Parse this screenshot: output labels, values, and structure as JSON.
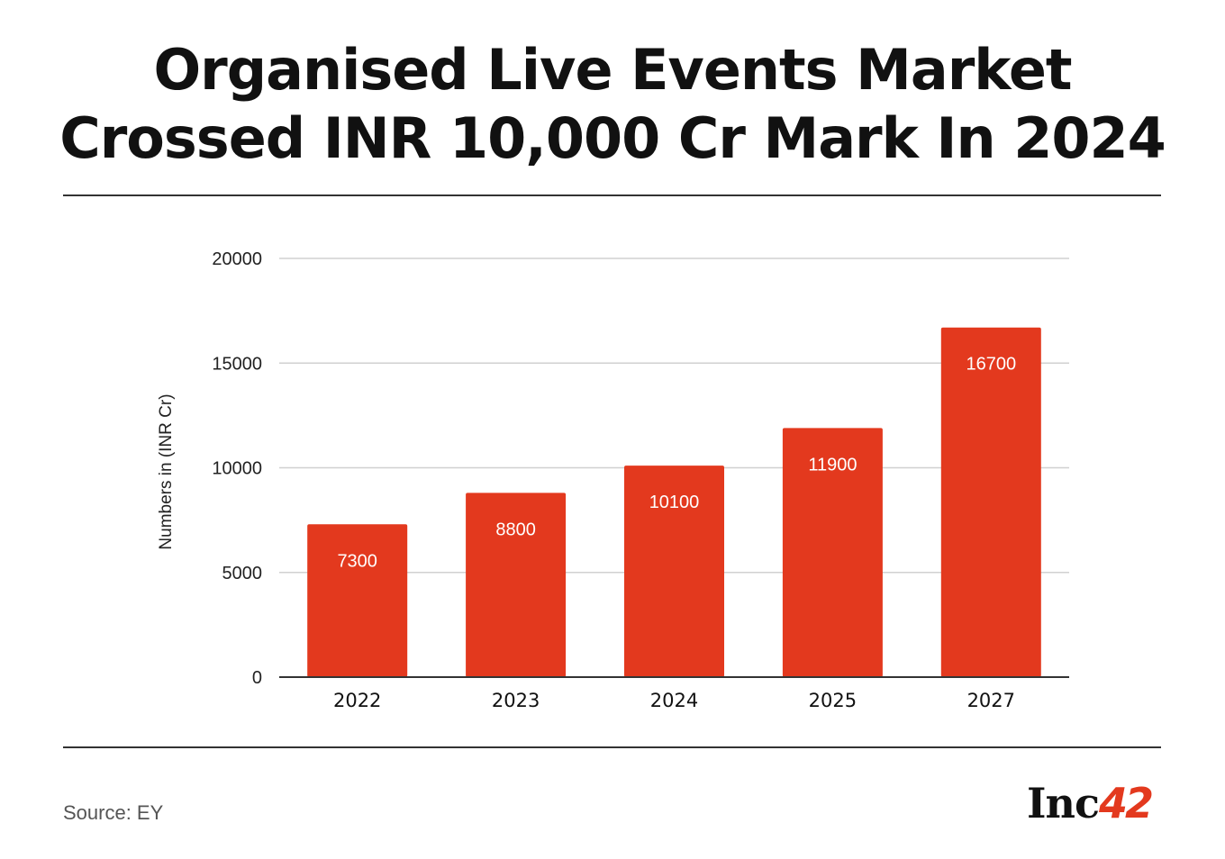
{
  "header": {
    "title_line1": "Organised Live Events Market",
    "title_line2": "Crossed INR 10,000 Cr Mark In 2024"
  },
  "chart_data": {
    "type": "bar",
    "categories": [
      "2022",
      "2023",
      "2024",
      "2025",
      "2027"
    ],
    "values": [
      7300,
      8800,
      10100,
      11900,
      16700
    ],
    "data_labels": [
      "7300",
      "8800",
      "10100",
      "11900",
      "16700"
    ],
    "title": "Organised Live Events Market Crossed INR 10,000 Cr Mark In 2024",
    "xlabel": "",
    "ylabel": "Numbers in (INR Cr)",
    "ylim": [
      0,
      20000
    ],
    "yticks": [
      0,
      5000,
      10000,
      15000,
      20000
    ],
    "ytick_labels": [
      "0",
      "5000",
      "10000",
      "15000",
      "20000"
    ],
    "grid": true,
    "bar_color": "#e3391e",
    "grid_color": "#d0d0d0",
    "data_label_color": "#ffffff"
  },
  "footer": {
    "source": "Source: EY",
    "logo_text": "Inc",
    "logo_number": "42",
    "accent_color": "#e3391e"
  }
}
